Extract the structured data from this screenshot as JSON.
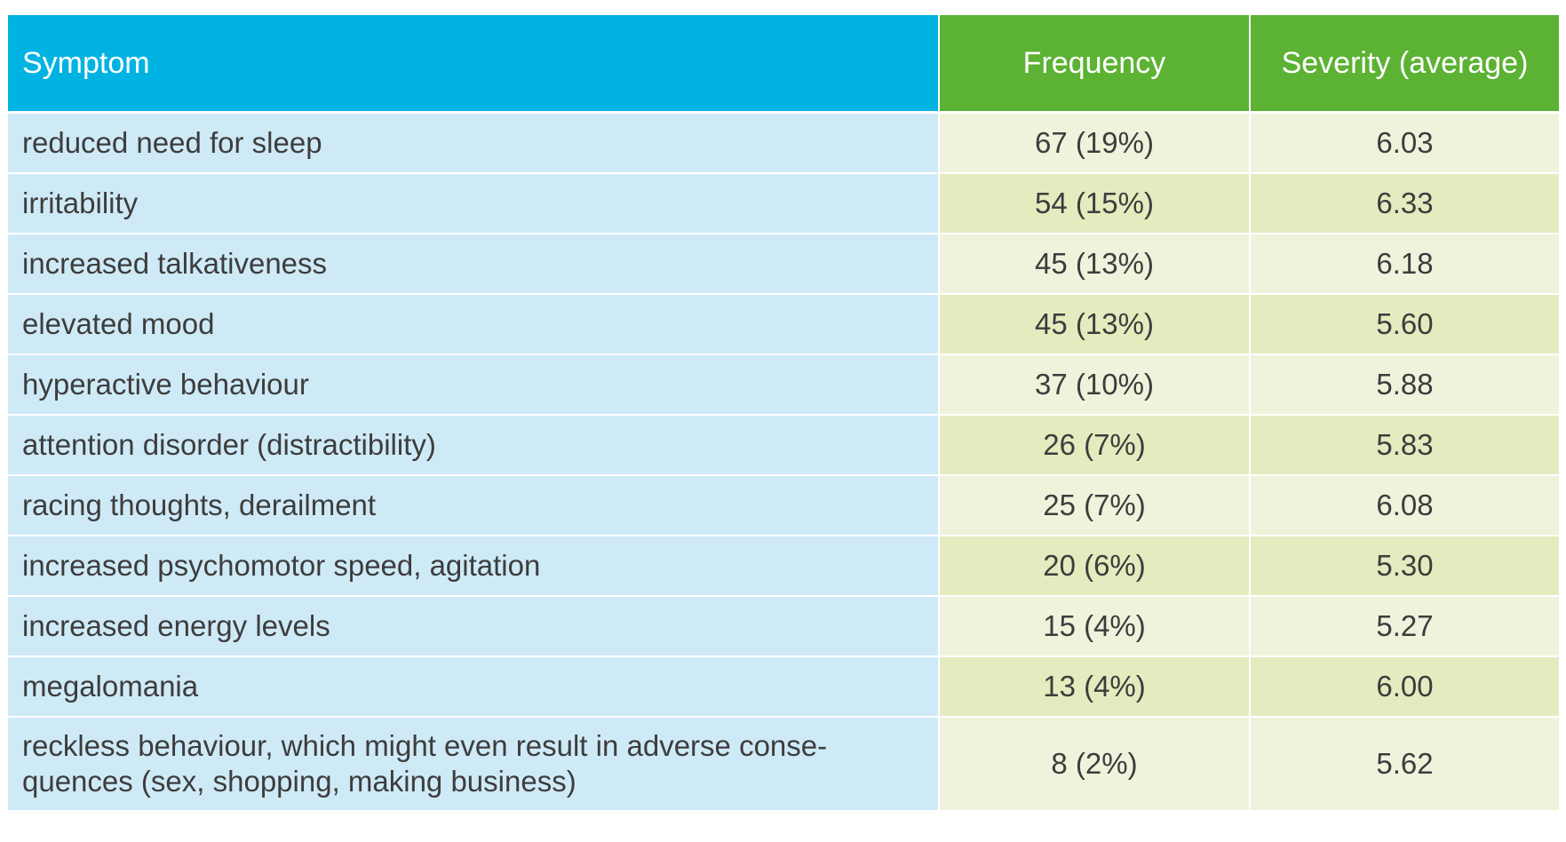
{
  "table": {
    "headers": {
      "symptom": "Symptom",
      "frequency": "Frequency",
      "severity": "Severity (average)"
    },
    "rows": [
      {
        "symptom": "reduced need for sleep",
        "frequency": "67 (19%)",
        "severity": "6.03"
      },
      {
        "symptom": "irritability",
        "frequency": "54 (15%)",
        "severity": "6.33"
      },
      {
        "symptom": "increased talkativeness",
        "frequency": "45 (13%)",
        "severity": "6.18"
      },
      {
        "symptom": "elevated mood",
        "frequency": "45 (13%)",
        "severity": "5.60"
      },
      {
        "symptom": "hyperactive behaviour",
        "frequency": "37 (10%)",
        "severity": "5.88"
      },
      {
        "symptom": "attention disorder (distractibility)",
        "frequency": "26 (7%)",
        "severity": "5.83"
      },
      {
        "symptom": "racing thoughts, derailment",
        "frequency": "25 (7%)",
        "severity": "6.08"
      },
      {
        "symptom": "increased psychomotor speed, agitation",
        "frequency": "20 (6%)",
        "severity": "5.30"
      },
      {
        "symptom": "increased energy levels",
        "frequency": "15 (4%)",
        "severity": "5.27"
      },
      {
        "symptom": "megalomania",
        "frequency": "13 (4%)",
        "severity": "6.00"
      },
      {
        "symptom_line1": "reckless behaviour, which might even result in adverse conse-",
        "symptom_line2": "quences (sex, shopping, making business)",
        "frequency": "8 (2%)",
        "severity": "5.62"
      }
    ]
  },
  "colors": {
    "header_symptom": "#00b3e3",
    "header_numeric": "#5cb233",
    "symptom_cell": "#cfeaf7",
    "numeric_cell_light": "#eff3dc",
    "numeric_cell_dark": "#e4ecbf"
  }
}
